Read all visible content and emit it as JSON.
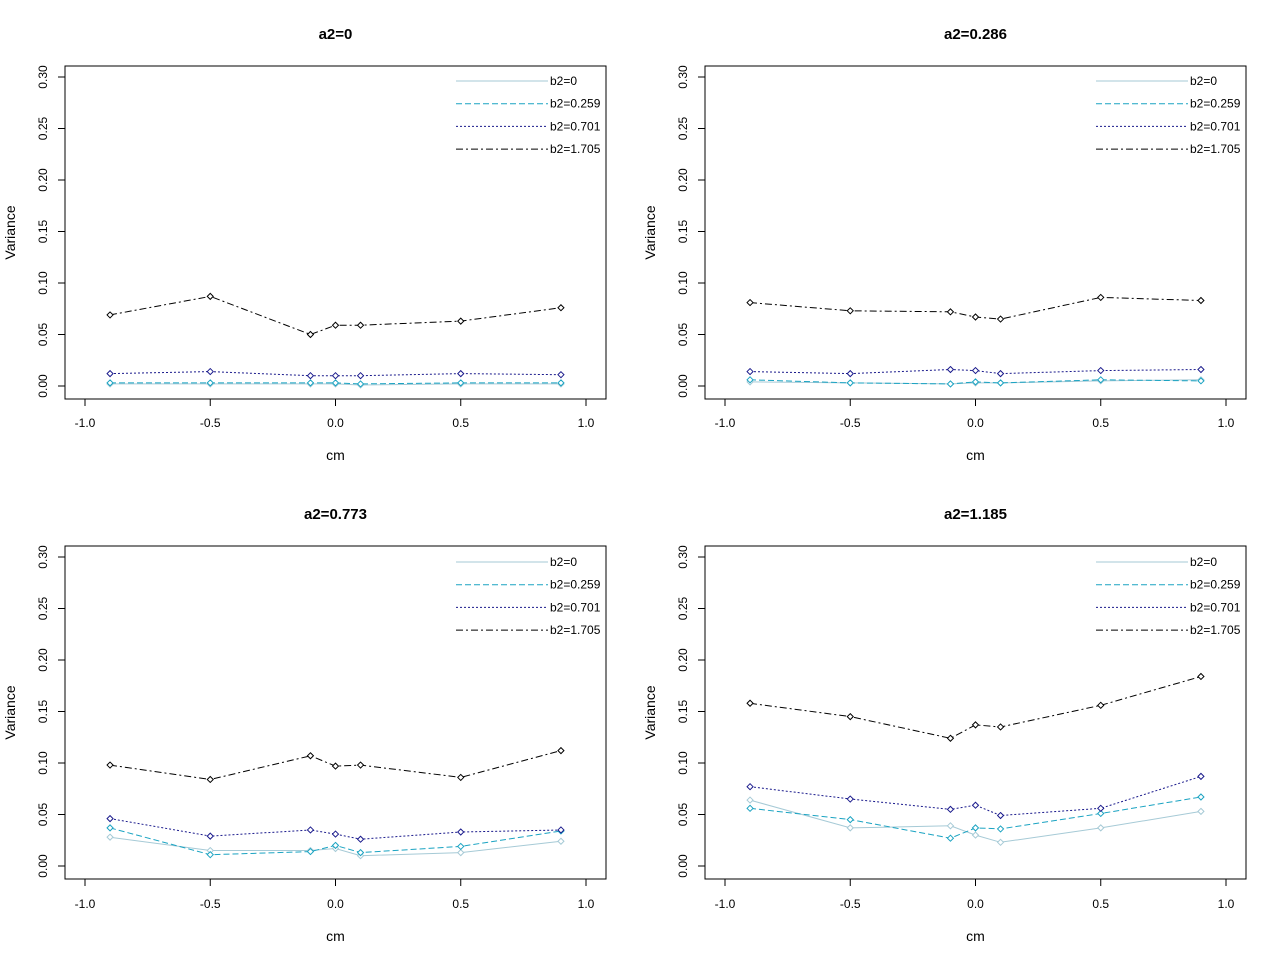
{
  "colors": {
    "b2=0": "#a6cad6",
    "b2=0.259": "#1aa3c2",
    "b2=0.701": "#1a1a8c",
    "b2=1.705": "#000000"
  },
  "chart_data": [
    {
      "type": "line",
      "title": "a2=0",
      "xlabel": "cm",
      "ylabel": "Variance",
      "xlim": [
        -1.0,
        1.0
      ],
      "ylim": [
        0.0,
        0.3
      ],
      "xticks": [
        "-1.0",
        "-0.5",
        "0.0",
        "0.5",
        "1.0"
      ],
      "yticks": [
        "0.00",
        "0.05",
        "0.10",
        "0.15",
        "0.20",
        "0.25",
        "0.30"
      ],
      "x": [
        -0.9,
        -0.5,
        -0.1,
        0.0,
        0.1,
        0.5,
        0.9
      ],
      "legend": "top-right",
      "series": [
        {
          "name": "b2=0",
          "values": [
            0.002,
            0.002,
            0.002,
            0.002,
            0.001,
            0.002,
            0.002
          ]
        },
        {
          "name": "b2=0.259",
          "values": [
            0.003,
            0.003,
            0.003,
            0.003,
            0.002,
            0.003,
            0.003
          ]
        },
        {
          "name": "b2=0.701",
          "values": [
            0.012,
            0.014,
            0.01,
            0.01,
            0.01,
            0.012,
            0.011
          ]
        },
        {
          "name": "b2=1.705",
          "values": [
            0.069,
            0.087,
            0.05,
            0.059,
            0.059,
            0.063,
            0.076
          ]
        }
      ]
    },
    {
      "type": "line",
      "title": "a2=0.286",
      "xlabel": "cm",
      "ylabel": "Variance",
      "xlim": [
        -1.0,
        1.0
      ],
      "ylim": [
        0.0,
        0.3
      ],
      "xticks": [
        "-1.0",
        "-0.5",
        "0.0",
        "0.5",
        "1.0"
      ],
      "yticks": [
        "0.00",
        "0.05",
        "0.10",
        "0.15",
        "0.20",
        "0.25",
        "0.30"
      ],
      "x": [
        -0.9,
        -0.5,
        -0.1,
        0.0,
        0.1,
        0.5,
        0.9
      ],
      "legend": "top-right",
      "series": [
        {
          "name": "b2=0",
          "values": [
            0.004,
            0.003,
            0.002,
            0.003,
            0.003,
            0.005,
            0.006
          ]
        },
        {
          "name": "b2=0.259",
          "values": [
            0.006,
            0.003,
            0.002,
            0.004,
            0.003,
            0.006,
            0.005
          ]
        },
        {
          "name": "b2=0.701",
          "values": [
            0.014,
            0.012,
            0.016,
            0.015,
            0.012,
            0.015,
            0.016
          ]
        },
        {
          "name": "b2=1.705",
          "values": [
            0.081,
            0.073,
            0.072,
            0.067,
            0.065,
            0.086,
            0.083
          ]
        }
      ]
    },
    {
      "type": "line",
      "title": "a2=0.773",
      "xlabel": "cm",
      "ylabel": "Variance",
      "xlim": [
        -1.0,
        1.0
      ],
      "ylim": [
        0.0,
        0.3
      ],
      "xticks": [
        "-1.0",
        "-0.5",
        "0.0",
        "0.5",
        "1.0"
      ],
      "yticks": [
        "0.00",
        "0.05",
        "0.10",
        "0.15",
        "0.20",
        "0.25",
        "0.30"
      ],
      "x": [
        -0.9,
        -0.5,
        -0.1,
        0.0,
        0.1,
        0.5,
        0.9
      ],
      "legend": "top-right",
      "series": [
        {
          "name": "b2=0",
          "values": [
            0.028,
            0.015,
            0.015,
            0.017,
            0.01,
            0.013,
            0.024
          ]
        },
        {
          "name": "b2=0.259",
          "values": [
            0.037,
            0.011,
            0.014,
            0.02,
            0.013,
            0.019,
            0.034
          ]
        },
        {
          "name": "b2=0.701",
          "values": [
            0.046,
            0.029,
            0.035,
            0.031,
            0.026,
            0.033,
            0.035
          ]
        },
        {
          "name": "b2=1.705",
          "values": [
            0.098,
            0.084,
            0.107,
            0.097,
            0.098,
            0.086,
            0.112
          ]
        }
      ]
    },
    {
      "type": "line",
      "title": "a2=1.185",
      "xlabel": "cm",
      "ylabel": "Variance",
      "xlim": [
        -1.0,
        1.0
      ],
      "ylim": [
        0.0,
        0.3
      ],
      "xticks": [
        "-1.0",
        "-0.5",
        "0.0",
        "0.5",
        "1.0"
      ],
      "yticks": [
        "0.00",
        "0.05",
        "0.10",
        "0.15",
        "0.20",
        "0.25",
        "0.30"
      ],
      "x": [
        -0.9,
        -0.5,
        -0.1,
        0.0,
        0.1,
        0.5,
        0.9
      ],
      "legend": "top-right",
      "series": [
        {
          "name": "b2=0",
          "values": [
            0.064,
            0.037,
            0.039,
            0.03,
            0.023,
            0.037,
            0.053
          ]
        },
        {
          "name": "b2=0.259",
          "values": [
            0.056,
            0.045,
            0.027,
            0.037,
            0.036,
            0.051,
            0.067
          ]
        },
        {
          "name": "b2=0.701",
          "values": [
            0.077,
            0.065,
            0.055,
            0.059,
            0.049,
            0.056,
            0.087
          ]
        },
        {
          "name": "b2=1.705",
          "values": [
            0.158,
            0.145,
            0.124,
            0.137,
            0.135,
            0.156,
            0.184
          ]
        }
      ]
    }
  ]
}
